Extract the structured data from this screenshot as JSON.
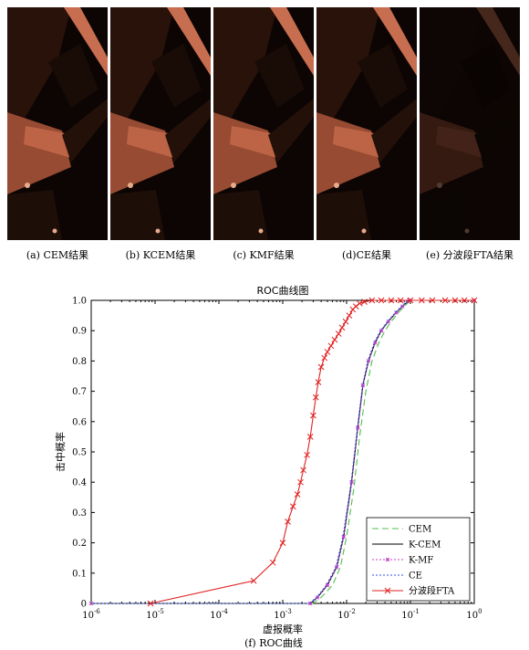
{
  "captions": [
    "(a) CEM结果",
    "(b) KCEM结果",
    "(c) KMF结果",
    "(d)CE结果",
    "(e) 分波段FTA结果"
  ],
  "chart_caption": "(f) ROC曲线",
  "chart_data": {
    "type": "line",
    "title": "ROC曲线图",
    "xlabel": "虚报概率",
    "ylabel": "击中概率",
    "xscale": "log",
    "xlim": [
      1e-06,
      1
    ],
    "ylim": [
      0,
      1
    ],
    "xticks": [
      "10^-6",
      "10^-5",
      "10^-4",
      "10^-3",
      "10^-2",
      "10^-1",
      "10^0"
    ],
    "yticks": [
      "0",
      "0.1",
      "0.2",
      "0.3",
      "0.4",
      "0.5",
      "0.6",
      "0.7",
      "0.8",
      "0.9",
      "1.0"
    ],
    "legend_position": "bottom-right",
    "series": [
      {
        "name": "CEM",
        "color": "#4fbf4f",
        "style": "dashed",
        "marker": "none",
        "points": [
          [
            1e-06,
            0
          ],
          [
            0.003,
            0
          ],
          [
            0.004,
            0.02
          ],
          [
            0.006,
            0.06
          ],
          [
            0.008,
            0.12
          ],
          [
            0.01,
            0.22
          ],
          [
            0.013,
            0.38
          ],
          [
            0.016,
            0.55
          ],
          [
            0.02,
            0.7
          ],
          [
            0.025,
            0.8
          ],
          [
            0.032,
            0.86
          ],
          [
            0.04,
            0.9
          ],
          [
            0.05,
            0.93
          ],
          [
            0.065,
            0.96
          ],
          [
            0.08,
            0.98
          ],
          [
            0.1,
            1.0
          ],
          [
            1,
            1.0
          ]
        ]
      },
      {
        "name": "K-CEM",
        "color": "#000000",
        "style": "solid",
        "marker": "none",
        "points": [
          [
            1e-06,
            0
          ],
          [
            0.0027,
            0
          ],
          [
            0.0035,
            0.02
          ],
          [
            0.005,
            0.06
          ],
          [
            0.007,
            0.12
          ],
          [
            0.009,
            0.22
          ],
          [
            0.012,
            0.4
          ],
          [
            0.015,
            0.58
          ],
          [
            0.018,
            0.72
          ],
          [
            0.022,
            0.8
          ],
          [
            0.028,
            0.86
          ],
          [
            0.035,
            0.9
          ],
          [
            0.045,
            0.93
          ],
          [
            0.06,
            0.96
          ],
          [
            0.075,
            0.98
          ],
          [
            0.095,
            1.0
          ],
          [
            1,
            1.0
          ]
        ]
      },
      {
        "name": "K-MF",
        "color": "#c040c0",
        "style": "dotted",
        "marker": "star",
        "points": [
          [
            1e-06,
            0
          ],
          [
            0.0027,
            0
          ],
          [
            0.0035,
            0.02
          ],
          [
            0.005,
            0.06
          ],
          [
            0.007,
            0.12
          ],
          [
            0.009,
            0.22
          ],
          [
            0.012,
            0.4
          ],
          [
            0.015,
            0.58
          ],
          [
            0.018,
            0.72
          ],
          [
            0.022,
            0.8
          ],
          [
            0.028,
            0.86
          ],
          [
            0.035,
            0.9
          ],
          [
            0.045,
            0.93
          ],
          [
            0.06,
            0.96
          ],
          [
            0.075,
            0.98
          ],
          [
            0.095,
            1.0
          ],
          [
            1,
            1.0
          ]
        ]
      },
      {
        "name": "CE",
        "color": "#3050e0",
        "style": "dotted",
        "marker": "none",
        "points": [
          [
            1e-06,
            0
          ],
          [
            0.0026,
            0
          ],
          [
            0.0034,
            0.02
          ],
          [
            0.0048,
            0.06
          ],
          [
            0.0068,
            0.12
          ],
          [
            0.0088,
            0.22
          ],
          [
            0.0118,
            0.4
          ],
          [
            0.0148,
            0.58
          ],
          [
            0.0178,
            0.72
          ],
          [
            0.0215,
            0.8
          ],
          [
            0.027,
            0.86
          ],
          [
            0.034,
            0.9
          ],
          [
            0.044,
            0.93
          ],
          [
            0.058,
            0.96
          ],
          [
            0.073,
            0.98
          ],
          [
            0.09,
            1.0
          ],
          [
            1,
            1.0
          ]
        ]
      },
      {
        "name": "分波段FTA",
        "color": "#e02020",
        "style": "solid",
        "marker": "x",
        "points": [
          [
            8.5e-06,
            0
          ],
          [
            0.00035,
            0.075
          ],
          [
            0.0007,
            0.135
          ],
          [
            0.001,
            0.2
          ],
          [
            0.0012,
            0.27
          ],
          [
            0.00145,
            0.32
          ],
          [
            0.0017,
            0.36
          ],
          [
            0.0019,
            0.4
          ],
          [
            0.0021,
            0.44
          ],
          [
            0.0024,
            0.49
          ],
          [
            0.0027,
            0.55
          ],
          [
            0.003,
            0.62
          ],
          [
            0.0033,
            0.68
          ],
          [
            0.0036,
            0.73
          ],
          [
            0.004,
            0.78
          ],
          [
            0.0045,
            0.81
          ],
          [
            0.005,
            0.83
          ],
          [
            0.0057,
            0.85
          ],
          [
            0.0065,
            0.87
          ],
          [
            0.0075,
            0.89
          ],
          [
            0.0085,
            0.91
          ],
          [
            0.0097,
            0.93
          ],
          [
            0.011,
            0.95
          ],
          [
            0.0125,
            0.97
          ],
          [
            0.014,
            0.98
          ],
          [
            0.016,
            0.99
          ],
          [
            0.019,
            0.995
          ],
          [
            0.025,
            1.0
          ],
          [
            0.035,
            1.0
          ],
          [
            0.05,
            1.0
          ],
          [
            0.07,
            1.0
          ],
          [
            0.1,
            1.0
          ],
          [
            0.15,
            1.0
          ],
          [
            0.22,
            1.0
          ],
          [
            0.35,
            1.0
          ],
          [
            0.5,
            1.0
          ],
          [
            0.7,
            1.0
          ],
          [
            1,
            1.0
          ]
        ]
      }
    ]
  }
}
